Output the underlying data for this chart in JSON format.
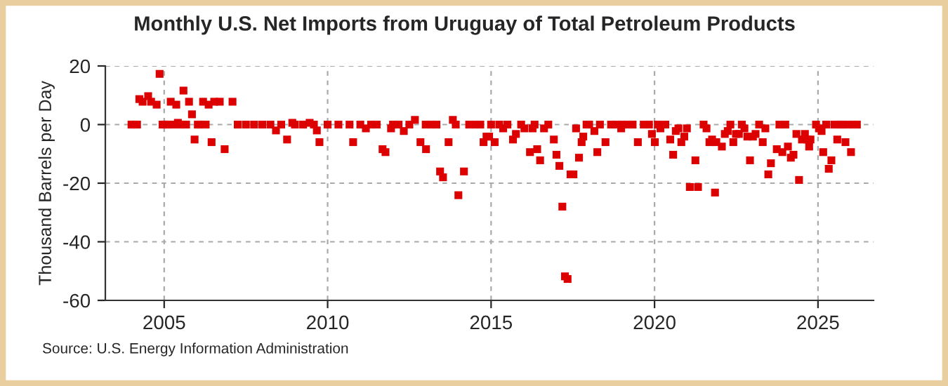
{
  "chart_data": {
    "type": "scatter",
    "title": "Monthly U.S. Net Imports from Uruguay of Total Petroleum Products",
    "ylabel": "Thousand Barrels per Day",
    "annotations": [
      "Source: U.S. Energy Information Administration"
    ],
    "xlim": [
      2003.2,
      2026.7
    ],
    "xticks": [
      2005,
      2010,
      2015,
      2020,
      2025
    ],
    "ylim": [
      -60,
      20
    ],
    "yticks": [
      -60,
      -40,
      -20,
      0,
      20
    ],
    "grid": true,
    "marker": "square",
    "series": [
      {
        "color": "#dd0000",
        "x": [
          2004.24,
          2004.34,
          2004.51,
          2004.6,
          2004.77,
          2004.86,
          2005.2,
          2005.37,
          2005.42,
          2005.59,
          2005.76,
          2005.85,
          2005.93,
          2006.19,
          2006.36,
          2006.45,
          2006.53,
          2006.7,
          2006.85,
          2007.09,
          2008.42,
          2008.76,
          2008.92,
          2009.45,
          2009.67,
          2009.75,
          2010.78,
          2011.17,
          2011.68,
          2011.77,
          2011.94,
          2012.33,
          2012.67,
          2012.84,
          2013.01,
          2013.44,
          2013.53,
          2013.7,
          2013.83,
          2014.0,
          2014.17,
          2014.77,
          2014.86,
          2014.94,
          2015.11,
          2015.37,
          2015.67,
          2015.76,
          2016.02,
          2016.19,
          2016.27,
          2016.41,
          2016.5,
          2016.62,
          2016.92,
          2017.0,
          2017.09,
          2017.18,
          2017.26,
          2017.34,
          2017.43,
          2017.52,
          2017.6,
          2017.69,
          2017.77,
          2017.82,
          2018.16,
          2018.25,
          2018.5,
          2018.98,
          2019.49,
          2019.92,
          2020.01,
          2020.18,
          2020.48,
          2020.57,
          2020.65,
          2020.73,
          2020.82,
          2020.91,
          2020.99,
          2021.08,
          2021.25,
          2021.33,
          2021.59,
          2021.68,
          2021.76,
          2021.85,
          2021.89,
          2022.06,
          2022.15,
          2022.24,
          2022.41,
          2022.49,
          2022.58,
          2022.75,
          2022.84,
          2022.92,
          2023.01,
          2023.09,
          2023.31,
          2023.39,
          2023.48,
          2023.56,
          2023.74,
          2023.91,
          2024.08,
          2024.17,
          2024.25,
          2024.34,
          2024.42,
          2024.51,
          2024.6,
          2024.68,
          2024.73,
          2024.77,
          2025.03,
          2025.11,
          2025.16,
          2025.33,
          2025.41,
          2025.59,
          2025.84,
          2026.01,
          2004.0,
          2004.08,
          2004.17,
          2004.95,
          2005.03,
          2005.11,
          2005.28,
          2005.5,
          2005.67,
          2006.03,
          2006.11,
          2006.27,
          2007.25,
          2007.5,
          2007.75,
          2008.0,
          2008.25,
          2008.58,
          2009.0,
          2009.25,
          2009.58,
          2010.0,
          2010.33,
          2010.67,
          2011.0,
          2011.33,
          2011.5,
          2012.0,
          2012.17,
          2012.5,
          2013.0,
          2013.17,
          2013.33,
          2013.92,
          2014.33,
          2014.5,
          2014.67,
          2015.0,
          2015.25,
          2015.5,
          2015.92,
          2016.33,
          2016.75,
          2017.92,
          2018.0,
          2018.33,
          2018.67,
          2018.83,
          2019.0,
          2019.17,
          2019.33,
          2019.67,
          2019.83,
          2020.1,
          2020.33,
          2021.5,
          2022.32,
          2022.67,
          2023.2,
          2023.82,
          2024.0,
          2024.94,
          2025.25,
          2025.5,
          2025.67,
          2025.75,
          2025.92,
          2026.09,
          2026.19
        ],
        "values": [
          8.7,
          7.8,
          9.7,
          7.8,
          6.8,
          17.3,
          7.8,
          6.8,
          0.6,
          11.6,
          7.8,
          3.5,
          -5.1,
          7.8,
          6.8,
          -6,
          7.8,
          7.8,
          -8.4,
          7.8,
          -2,
          -5.1,
          0.6,
          0.6,
          -2,
          -6,
          -6,
          -1.3,
          -8.4,
          -9.4,
          -1.3,
          -2.2,
          1.6,
          -6,
          -8.4,
          -16,
          -18,
          -6,
          1.6,
          -24.1,
          -16,
          -6,
          -4.1,
          -4.1,
          -6,
          -1.3,
          -5.1,
          -3.2,
          -1.3,
          -9.4,
          -1.3,
          -8.4,
          -12.2,
          -1.3,
          -5.1,
          -10.3,
          -14.1,
          -28,
          -51.8,
          -52.7,
          -17,
          -17,
          -1.3,
          -11.3,
          -6,
          -4.1,
          -2.2,
          -9.4,
          -6,
          -1.3,
          -6,
          -3.2,
          -6,
          -1.3,
          -5.1,
          -10.3,
          -2.2,
          -1.3,
          -6,
          -4.1,
          -1.3,
          -21.3,
          -12.2,
          -21.3,
          -1.3,
          -6,
          -5.1,
          -23.2,
          -6,
          -7.5,
          -3.2,
          -2.2,
          -6,
          -3.2,
          -3.2,
          -1.3,
          -4.1,
          -12.2,
          -4.1,
          -3.2,
          -6,
          -1.3,
          -17,
          -13.2,
          -8.4,
          -9.4,
          -7.5,
          -11.3,
          -10.3,
          -3.2,
          -18.9,
          -5.1,
          -3.2,
          -5.1,
          -7.5,
          -5.1,
          -1.3,
          -2.2,
          -9.4,
          -15.1,
          -12.2,
          -5.1,
          -6,
          -9.4,
          0,
          0,
          0,
          0,
          0,
          0,
          0,
          0,
          0,
          0,
          0,
          0,
          0,
          0,
          0,
          0,
          0,
          0,
          0,
          0,
          0,
          0,
          0,
          0,
          0,
          0,
          0,
          0,
          0,
          0,
          0,
          0,
          0,
          0,
          0,
          0,
          0,
          0,
          0,
          0,
          0,
          0,
          0,
          0,
          0,
          0,
          0,
          0,
          0,
          0,
          0,
          0,
          0,
          0,
          0,
          0,
          0,
          0,
          0,
          0,
          0,
          0,
          0,
          0,
          0,
          0,
          0,
          0,
          0
        ]
      }
    ]
  }
}
